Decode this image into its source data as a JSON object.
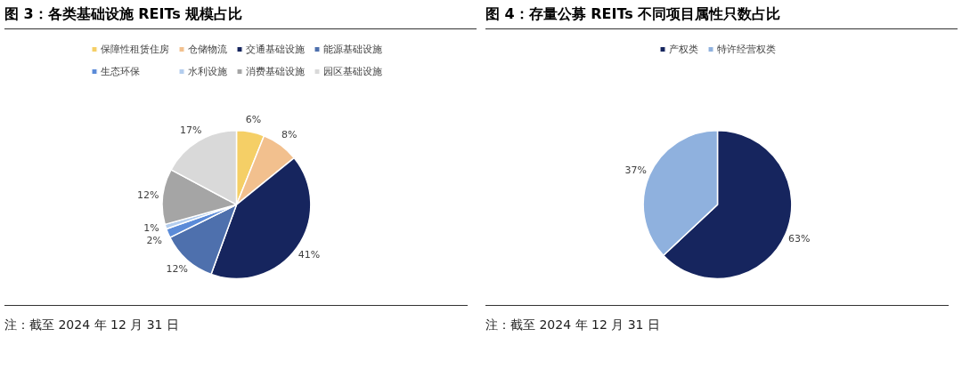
{
  "chart_data": [
    {
      "type": "pie",
      "title": "图 3：各类基础设施 REITs 规模占比",
      "categories": [
        "保障性租赁住房",
        "仓储物流",
        "交通基础设施",
        "能源基础设施",
        "生态环保",
        "水利设施",
        "消费基础设施",
        "园区基础设施"
      ],
      "values": [
        6,
        8,
        41,
        12,
        2,
        1,
        12,
        17
      ],
      "colors": [
        "#f5cf66",
        "#f2c08e",
        "#16255e",
        "#4e70ad",
        "#5b8bd8",
        "#b3cdee",
        "#a5a5a5",
        "#d9d9d9"
      ],
      "value_labels": [
        "6%",
        "8%",
        "41%",
        "12%",
        "2%",
        "1%",
        "12%",
        "17%"
      ],
      "legend": "top",
      "annotations": [
        "注：截至 2024 年 12 月 31 日"
      ]
    },
    {
      "type": "pie",
      "title": "图 4：存量公募 REITs 不同项目属性只数占比",
      "categories": [
        "产权类",
        "特许经营权类"
      ],
      "values": [
        63,
        37
      ],
      "colors": [
        "#16255e",
        "#8fb1de"
      ],
      "value_labels": [
        "63%",
        "37%"
      ],
      "legend": "top",
      "annotations": [
        "注：截至 2024 年 12 月 31 日"
      ]
    }
  ]
}
